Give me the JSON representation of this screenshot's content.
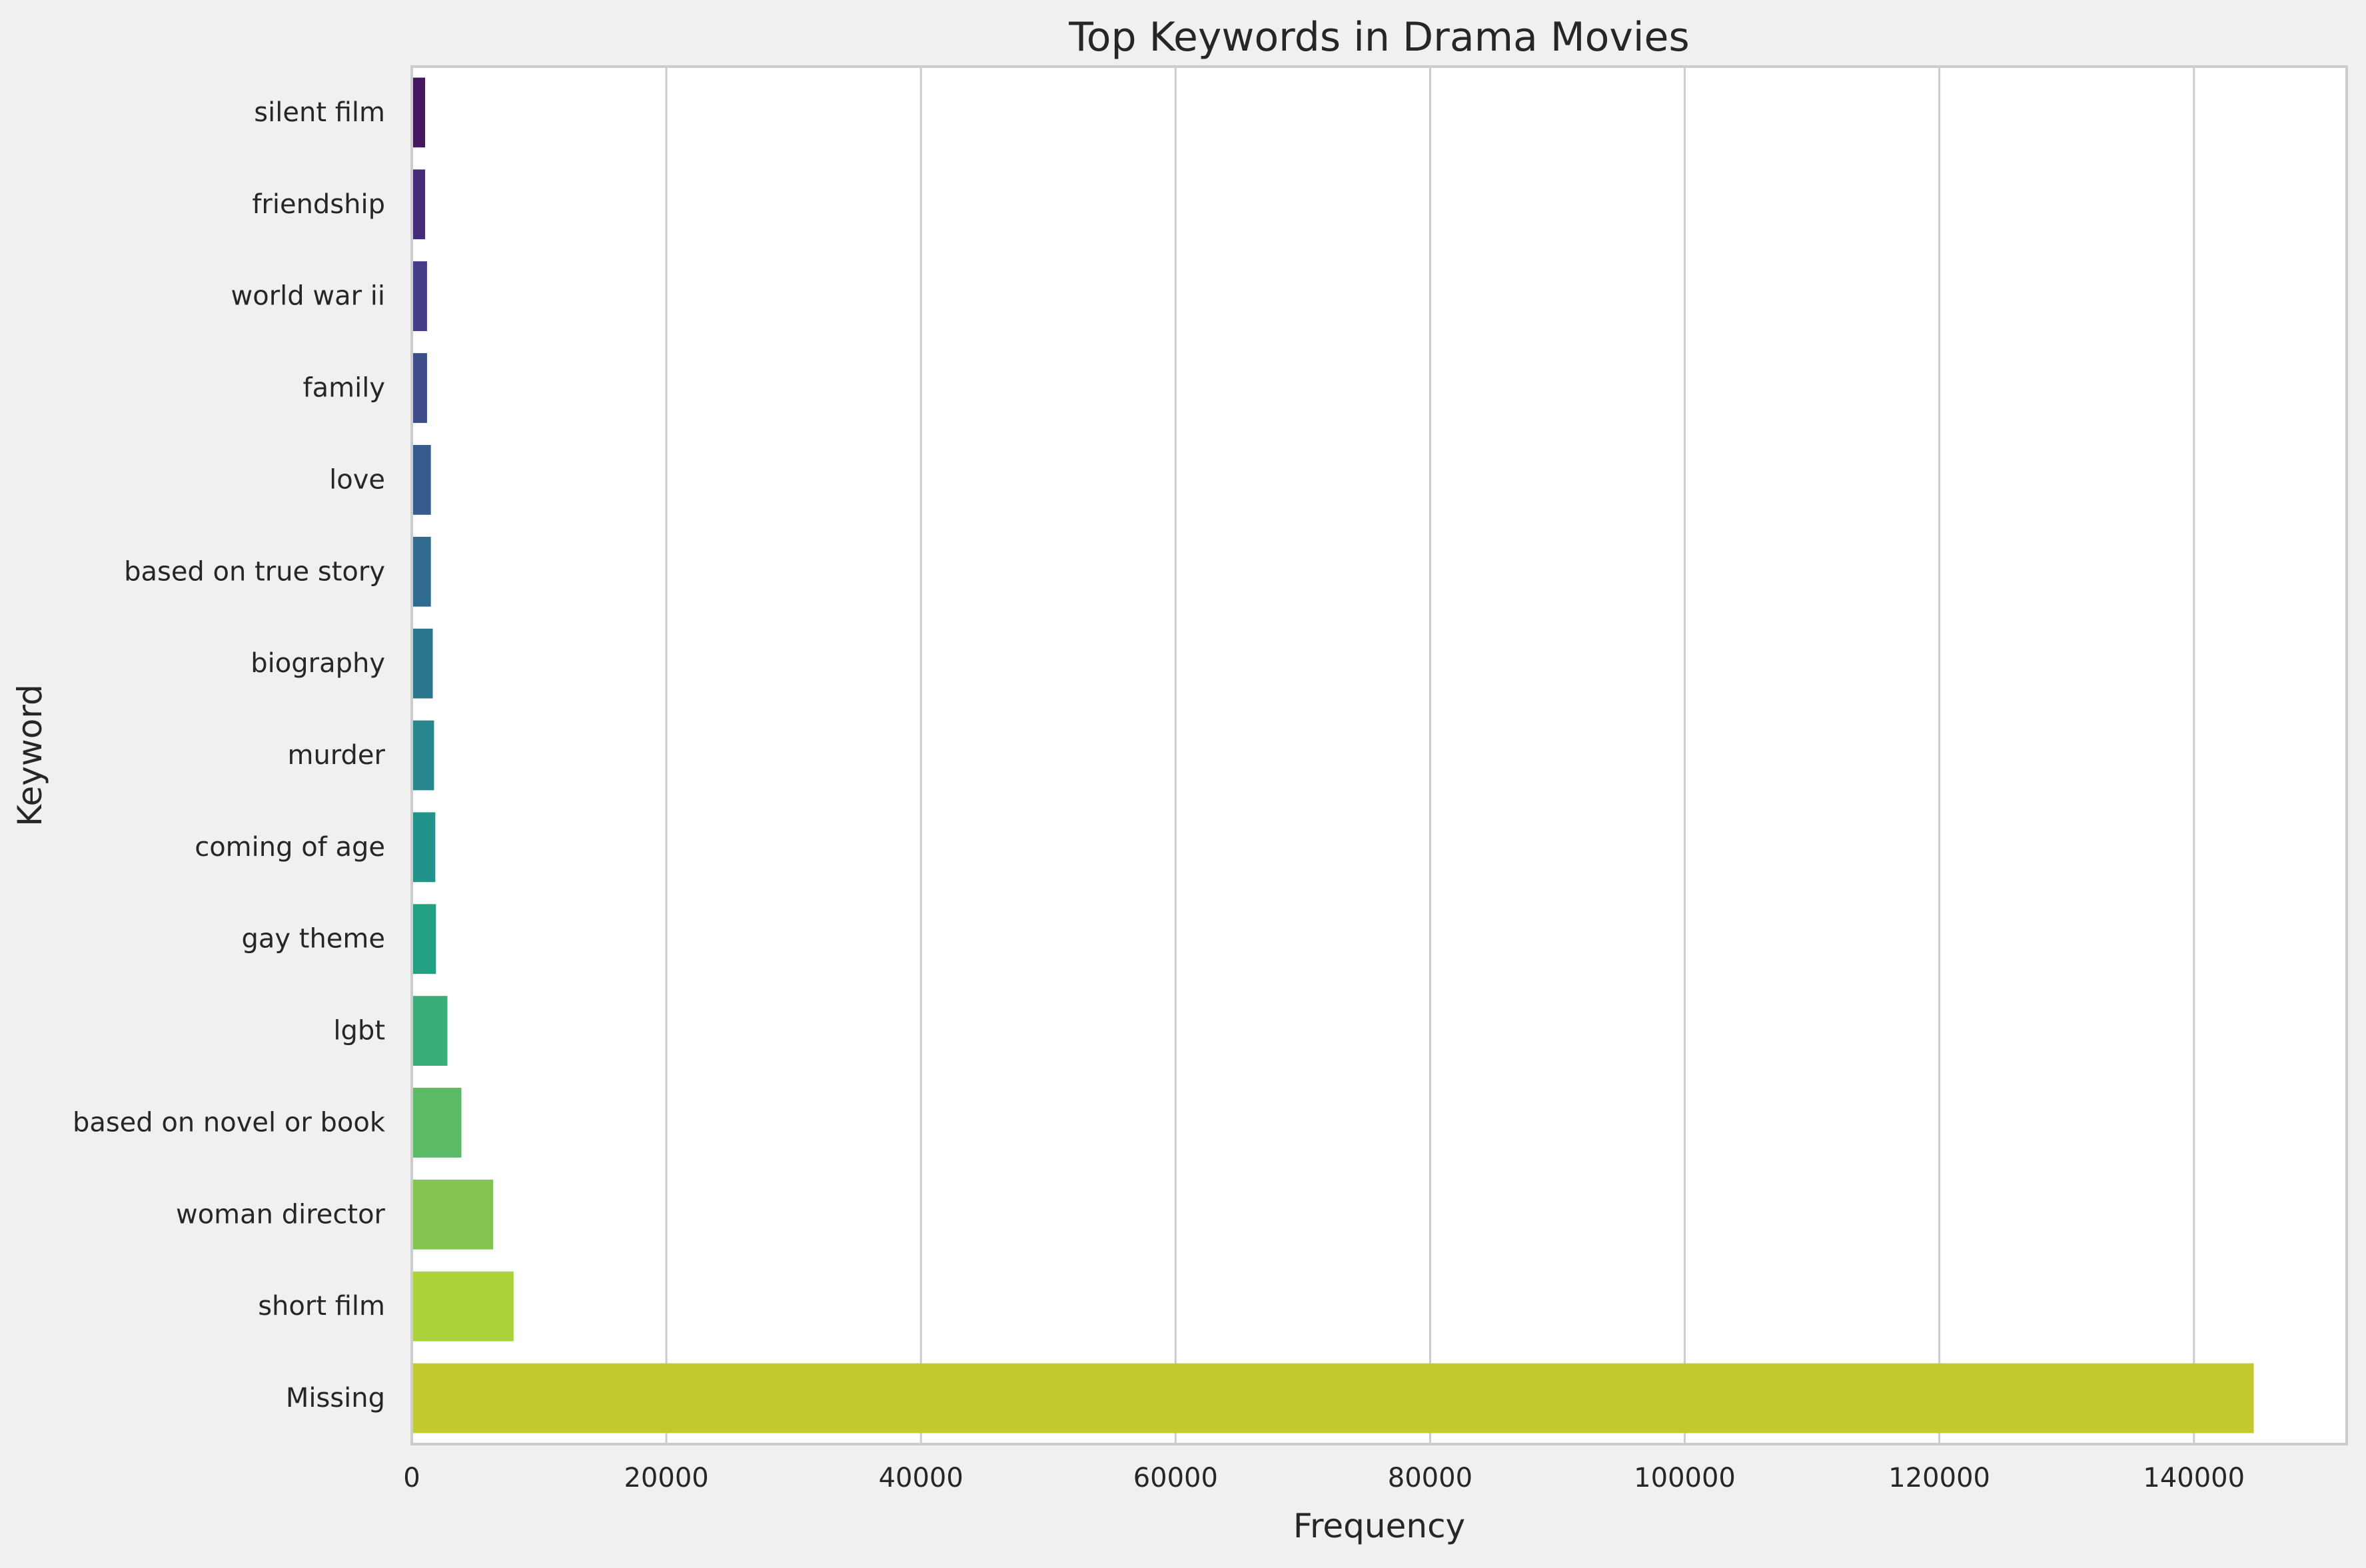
{
  "chart_data": {
    "type": "bar",
    "orientation": "horizontal",
    "title": "Top Keywords in Drama Movies",
    "xlabel": "Frequency",
    "ylabel": "Keyword",
    "xlim": [
      0,
      152000
    ],
    "xticks": [
      0,
      20000,
      40000,
      60000,
      80000,
      100000,
      120000,
      140000
    ],
    "grid": "vertical",
    "categories": [
      "silent film",
      "friendship",
      "world war ii",
      "family",
      "love",
      "based on true story",
      "biography",
      "murder",
      "coming of age",
      "gay theme",
      "lgbt",
      "based on novel or book",
      "woman director",
      "short film",
      "Missing"
    ],
    "values": [
      1050,
      1050,
      1200,
      1200,
      1500,
      1500,
      1650,
      1750,
      1850,
      1900,
      2800,
      3900,
      6400,
      8000,
      144700
    ],
    "colors": [
      "#46175f",
      "#472a79",
      "#443c86",
      "#3e4c8a",
      "#365c8d",
      "#306a8e",
      "#2b788e",
      "#27868e",
      "#21938b",
      "#22a083",
      "#39ad78",
      "#5cbb66",
      "#84c54f",
      "#acd239",
      "#c3ca30"
    ]
  }
}
